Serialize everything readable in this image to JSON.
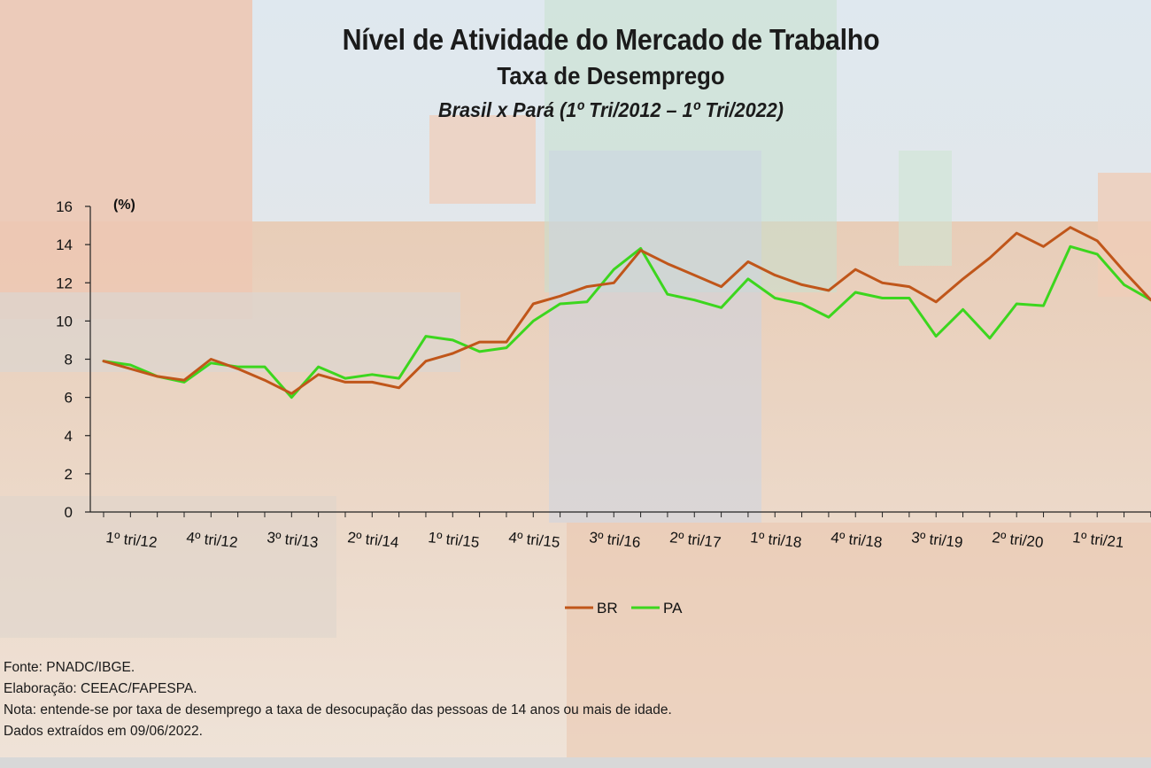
{
  "title": "Nível de Atividade do Mercado de Trabalho",
  "subtitle": "Taxa de Desemprego",
  "period": "Brasil x Pará (1º Tri/2012 – 1º Tri/2022)",
  "colors": {
    "BR": "#c0561a",
    "PA": "#3cd61e"
  },
  "chart_data": {
    "type": "line",
    "ylabel": "(%)",
    "ylim": [
      0,
      16
    ],
    "yticks": [
      0,
      2,
      4,
      6,
      8,
      10,
      12,
      14,
      16
    ],
    "grid": false,
    "legend": "bottom-center",
    "x": [
      "1º tri/12",
      "2º tri/12",
      "3º tri/12",
      "4º tri/12",
      "1º tri/13",
      "2º tri/13",
      "3º tri/13",
      "4º tri/13",
      "1º tri/14",
      "2º tri/14",
      "3º tri/14",
      "4º tri/14",
      "1º tri/15",
      "2º tri/15",
      "3º tri/15",
      "4º tri/15",
      "1º tri/16",
      "2º tri/16",
      "3º tri/16",
      "4º tri/16",
      "1º tri/17",
      "2º tri/17",
      "3º tri/17",
      "4º tri/17",
      "1º tri/18",
      "2º tri/18",
      "3º tri/18",
      "4º tri/18",
      "1º tri/19",
      "2º tri/19",
      "3º tri/19",
      "4º tri/19",
      "1º tri/20",
      "2º tri/20",
      "3º tri/20",
      "4º tri/20",
      "1º tri/21",
      "2º tri/21",
      "3º tri/21",
      "4º tri/21",
      "1º tri/22"
    ],
    "tick_labels": [
      "1º tri/12",
      "4º tri/12",
      "3º tri/13",
      "2º tri/14",
      "1º tri/15",
      "4º tri/15",
      "3º tri/16",
      "2º tri/17",
      "1º tri/18",
      "4º tri/18",
      "3º tri/19",
      "2º tri/20",
      "1º tri/21"
    ],
    "series": [
      {
        "name": "BR",
        "values": [
          7.9,
          7.5,
          7.1,
          6.9,
          8.0,
          7.5,
          6.9,
          6.2,
          7.2,
          6.8,
          6.8,
          6.5,
          7.9,
          8.3,
          8.9,
          8.9,
          10.9,
          11.3,
          11.8,
          12.0,
          13.7,
          13.0,
          12.4,
          11.8,
          13.1,
          12.4,
          11.9,
          11.6,
          12.7,
          12.0,
          11.8,
          11.0,
          12.2,
          13.3,
          14.6,
          13.9,
          14.9,
          14.2,
          12.6,
          11.1,
          11.1
        ]
      },
      {
        "name": "PA",
        "values": [
          7.9,
          7.7,
          7.1,
          6.8,
          7.8,
          7.6,
          7.6,
          6.0,
          7.6,
          7.0,
          7.2,
          7.0,
          9.2,
          9.0,
          8.4,
          8.6,
          10.0,
          10.9,
          11.0,
          12.7,
          13.8,
          11.4,
          11.1,
          10.7,
          12.2,
          11.2,
          10.9,
          10.2,
          11.5,
          11.2,
          11.2,
          9.2,
          10.6,
          9.1,
          10.9,
          10.8,
          13.9,
          13.5,
          11.9,
          11.1,
          11.1
        ]
      }
    ]
  },
  "notes": {
    "source": "Fonte: PNADC/IBGE.",
    "elaboration": "Elaboração: CEEAC/FAPESPA.",
    "note": "Nota: entende-se por taxa de desemprego a taxa de desocupação das pessoas de 14 anos ou mais de idade.",
    "extracted": "Dados extraídos em 09/06/2022."
  }
}
